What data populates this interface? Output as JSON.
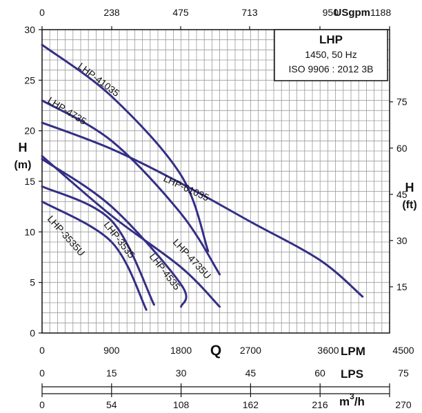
{
  "colors": {
    "curve": "#332f86",
    "grid": "#9a9a9a",
    "axis": "#111111"
  },
  "chart_data": {
    "type": "line",
    "x_unit_primary": "LPM",
    "xlim": [
      0,
      4500
    ],
    "ylim": [
      0,
      30
    ],
    "grid": true,
    "y_ticks_m": [
      "0",
      "5",
      "10",
      "15",
      "20",
      "25",
      "30"
    ],
    "y_label_left_top": "H",
    "y_label_left_bottom": "(m)",
    "y_label_right_top": "H",
    "y_label_right_bottom": "(ft)",
    "ft_ticks": [
      "15",
      "30",
      "45",
      "60",
      "75"
    ],
    "top_axis_ticks": [
      "0",
      "238",
      "475",
      "713",
      "950",
      "1188"
    ],
    "top_axis_unit": "USgpm",
    "q_label": "Q",
    "lpm_ticks": [
      "0",
      "900",
      "1800",
      "2700",
      "3600",
      "4500"
    ],
    "lpm_label": "LPM",
    "lps_ticks": [
      "0",
      "15",
      "30",
      "45",
      "60",
      "75"
    ],
    "lps_label": "LPS",
    "m3h_ticks": [
      "0",
      "54",
      "108",
      "162",
      "216",
      "270"
    ],
    "m3h_label": "m",
    "m3h_sup": "3",
    "m3h_suffix": "/h",
    "legend_box": {
      "title": "LHP",
      "line1": "1450, 50 Hz",
      "line2": "ISO 9906 : 2012 3B"
    },
    "series": [
      {
        "name": "LHP-41035",
        "points": [
          [
            0,
            28.5
          ],
          [
            900,
            23.4
          ],
          [
            1800,
            15.6
          ],
          [
            2150,
            8.1
          ]
        ]
      },
      {
        "name": "LHP-4735",
        "points": [
          [
            0,
            23.0
          ],
          [
            900,
            19.0
          ],
          [
            1800,
            11.8
          ],
          [
            2300,
            5.8
          ]
        ]
      },
      {
        "name": "LHP-61035",
        "points": [
          [
            0,
            20.8
          ],
          [
            900,
            18.2
          ],
          [
            1800,
            14.8
          ],
          [
            2700,
            11.0
          ],
          [
            3600,
            7.2
          ],
          [
            4150,
            3.6
          ]
        ]
      },
      {
        "name": "LHP-4735U",
        "points": [
          [
            0,
            17.5
          ],
          [
            900,
            11.6
          ],
          [
            1800,
            6.5
          ],
          [
            2300,
            2.6
          ]
        ]
      },
      {
        "name": "LHP-4535",
        "points": [
          [
            0,
            17.2
          ],
          [
            900,
            12.5
          ],
          [
            1800,
            4.8
          ],
          [
            1800,
            2.6
          ]
        ]
      },
      {
        "name": "LHP-3535",
        "points": [
          [
            0,
            14.5
          ],
          [
            900,
            11.1
          ],
          [
            1450,
            2.8
          ]
        ]
      },
      {
        "name": "LHP-3535U",
        "points": [
          [
            0,
            13.0
          ],
          [
            900,
            9.0
          ],
          [
            1350,
            2.3
          ]
        ]
      }
    ]
  }
}
